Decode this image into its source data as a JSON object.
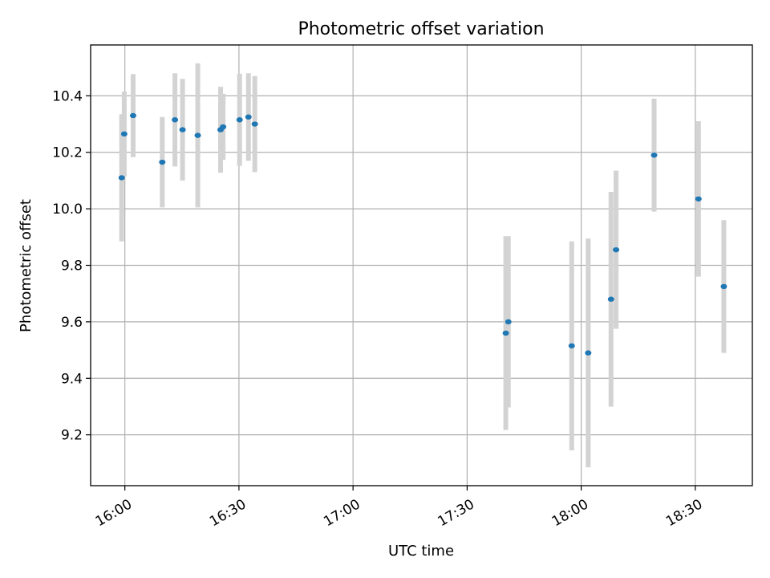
{
  "chart_data": {
    "type": "scatter",
    "title": "Photometric offset variation",
    "xlabel": "UTC time",
    "ylabel": "Photometric offset",
    "x_axis": "time (UTC, HH:MM)",
    "xlim": [
      "15:51",
      "18:45"
    ],
    "ylim": [
      9.02,
      10.58
    ],
    "xticks": [
      "16:00",
      "16:30",
      "17:00",
      "17:30",
      "18:00",
      "18:30"
    ],
    "yticks": [
      9.2,
      9.4,
      9.6,
      9.8,
      10.0,
      10.2,
      10.4
    ],
    "ytick_labels": [
      "9.2",
      "9.4",
      "9.6",
      "9.8",
      "10.0",
      "10.2",
      "10.4"
    ],
    "grid": true,
    "colors": {
      "points": "#1f77b4",
      "errorbars": "#d3d3d3",
      "grid": "#b0b0b0"
    },
    "points": [
      {
        "x": "15:59:10",
        "y": 10.11,
        "err": 0.225
      },
      {
        "x": "15:59:50",
        "y": 10.265,
        "err": 0.15
      },
      {
        "x": "16:02:10",
        "y": 10.33,
        "err": 0.147
      },
      {
        "x": "16:09:50",
        "y": 10.165,
        "err": 0.16
      },
      {
        "x": "16:13:10",
        "y": 10.315,
        "err": 0.165
      },
      {
        "x": "16:15:10",
        "y": 10.28,
        "err": 0.18
      },
      {
        "x": "16:19:10",
        "y": 10.26,
        "err": 0.255
      },
      {
        "x": "16:25:10",
        "y": 10.28,
        "err": 0.152
      },
      {
        "x": "16:25:50",
        "y": 10.29,
        "err": 0.117
      },
      {
        "x": "16:30:10",
        "y": 10.315,
        "err": 0.163
      },
      {
        "x": "16:32:30",
        "y": 10.325,
        "err": 0.155
      },
      {
        "x": "16:34:10",
        "y": 10.3,
        "err": 0.17
      },
      {
        "x": "17:40:10",
        "y": 9.56,
        "err": 0.343
      },
      {
        "x": "17:40:50",
        "y": 9.6,
        "err": 0.303
      },
      {
        "x": "17:57:30",
        "y": 9.515,
        "err": 0.37
      },
      {
        "x": "18:01:50",
        "y": 9.49,
        "err": 0.405
      },
      {
        "x": "18:07:50",
        "y": 9.68,
        "err": 0.38
      },
      {
        "x": "18:09:10",
        "y": 9.855,
        "err": 0.28
      },
      {
        "x": "18:19:10",
        "y": 10.19,
        "err": 0.2
      },
      {
        "x": "18:30:50",
        "y": 10.035,
        "err": 0.275
      },
      {
        "x": "18:37:30",
        "y": 9.725,
        "err": 0.235
      }
    ]
  }
}
